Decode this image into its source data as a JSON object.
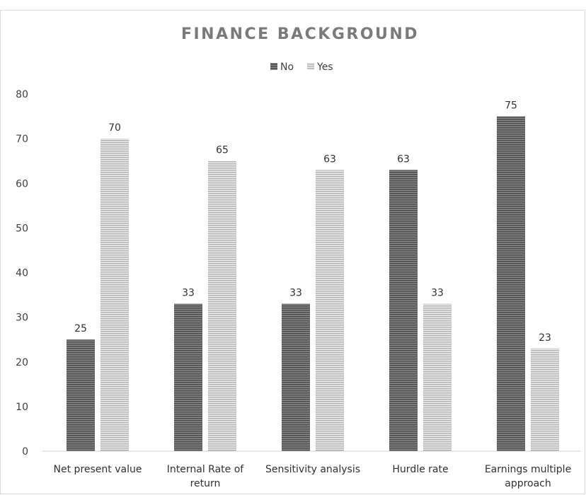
{
  "chart_data": {
    "type": "bar",
    "title": "FINANCE BACKGROUND",
    "xlabel": "",
    "ylabel": "",
    "categories": [
      [
        "Net present value"
      ],
      [
        "Internal Rate of",
        "return"
      ],
      [
        "Sensitivity analysis"
      ],
      [
        "Hurdle rate"
      ],
      [
        "Earnings multiple",
        "approach"
      ]
    ],
    "series": [
      {
        "name": "No",
        "values": [
          25,
          33,
          33,
          63,
          75
        ],
        "color": "#595959"
      },
      {
        "name": "Yes",
        "values": [
          70,
          65,
          63,
          33,
          23
        ],
        "color": "#bfbfbf"
      }
    ],
    "ylim": [
      0,
      80
    ],
    "yticks": [
      0,
      10,
      20,
      30,
      40,
      50,
      60,
      70,
      80
    ],
    "legend": "top-center",
    "grid": false,
    "pattern": "horizontal-stripes"
  }
}
